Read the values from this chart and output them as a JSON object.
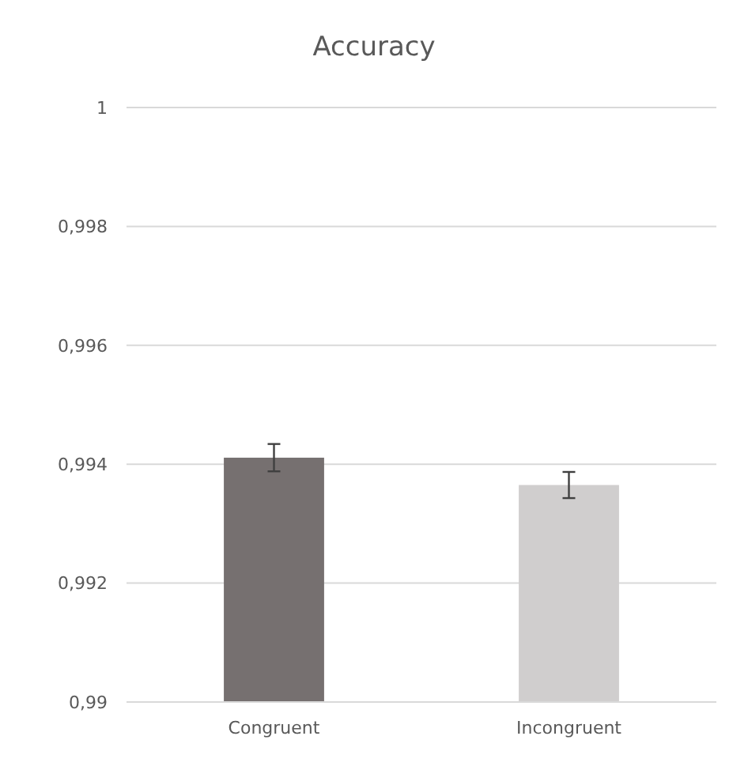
{
  "chart_data": {
    "type": "bar",
    "title": "Accuracy",
    "categories": [
      "Congruent",
      "Incongruent"
    ],
    "values": [
      0.99411,
      0.99365
    ],
    "colors": [
      "#767070",
      "#d0cece"
    ],
    "errors": [
      0.00023,
      0.00022
    ],
    "ylim": [
      0.99,
      1
    ],
    "yticks": [
      {
        "value": 0.99,
        "label": "0,99"
      },
      {
        "value": 0.992,
        "label": "0,992"
      },
      {
        "value": 0.994,
        "label": "0,994"
      },
      {
        "value": 0.996,
        "label": "0,996"
      },
      {
        "value": 0.998,
        "label": "0,998"
      },
      1
    ],
    "grid": "y"
  }
}
